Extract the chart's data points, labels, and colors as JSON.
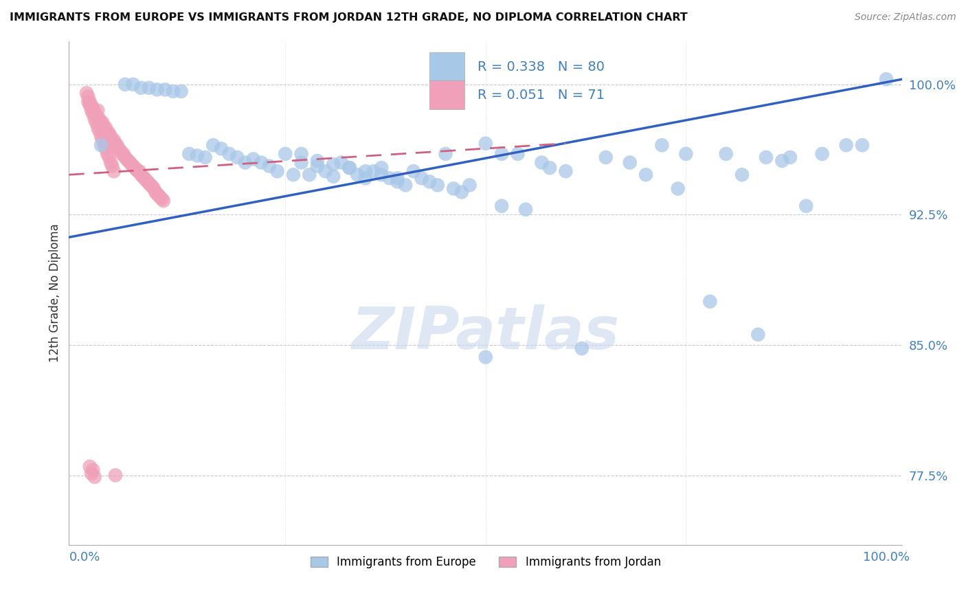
{
  "title": "IMMIGRANTS FROM EUROPE VS IMMIGRANTS FROM JORDAN 12TH GRADE, NO DIPLOMA CORRELATION CHART",
  "source": "Source: ZipAtlas.com",
  "ylabel": "12th Grade, No Diploma",
  "xlim": [
    -0.02,
    1.02
  ],
  "ylim": [
    0.735,
    1.025
  ],
  "ytick_vals": [
    0.775,
    0.85,
    0.925,
    1.0
  ],
  "ytick_labels": [
    "77.5%",
    "85.0%",
    "92.5%",
    "100.0%"
  ],
  "xtick_vals": [
    0.0,
    0.25,
    0.5,
    0.75,
    1.0
  ],
  "xtick_labels": [
    "0.0%",
    "",
    "",
    "",
    "100.0%"
  ],
  "blue_R": 0.338,
  "blue_N": 80,
  "pink_R": 0.051,
  "pink_N": 71,
  "blue_color": "#a8c8e8",
  "pink_color": "#f0a0b8",
  "blue_line_color": "#3060c0",
  "pink_line_color": "#d06080",
  "legend_label_blue": "Immigrants from Europe",
  "legend_label_pink": "Immigrants from Jordan",
  "title_color": "#1a1a1a",
  "source_color": "#888888",
  "watermark": "ZIPatlas",
  "tick_color": "#4080c0",
  "blue_line_x0": -0.02,
  "blue_line_x1": 1.02,
  "blue_line_y0": 0.912,
  "blue_line_y1": 1.003,
  "pink_line_x0": -0.02,
  "pink_line_x1": 0.6,
  "pink_line_y0": 0.948,
  "pink_line_y1": 0.966,
  "blue_scatter_x": [
    0.02,
    0.05,
    0.06,
    0.07,
    0.08,
    0.09,
    0.1,
    0.11,
    0.12,
    0.13,
    0.14,
    0.15,
    0.16,
    0.17,
    0.18,
    0.19,
    0.2,
    0.21,
    0.22,
    0.23,
    0.24,
    0.25,
    0.26,
    0.27,
    0.28,
    0.29,
    0.3,
    0.31,
    0.32,
    0.33,
    0.34,
    0.35,
    0.36,
    0.37,
    0.38,
    0.39,
    0.4,
    0.41,
    0.42,
    0.43,
    0.44,
    0.45,
    0.46,
    0.47,
    0.48,
    0.5,
    0.52,
    0.54,
    0.55,
    0.57,
    0.58,
    0.6,
    0.62,
    0.65,
    0.68,
    0.7,
    0.72,
    0.74,
    0.75,
    0.78,
    0.8,
    0.82,
    0.84,
    0.85,
    0.87,
    0.88,
    0.9,
    0.92,
    0.95,
    0.97,
    1.0,
    0.27,
    0.29,
    0.31,
    0.33,
    0.35,
    0.37,
    0.39,
    0.5,
    0.52
  ],
  "blue_scatter_y": [
    0.965,
    1.0,
    1.0,
    0.998,
    0.998,
    0.997,
    0.997,
    0.996,
    0.996,
    0.96,
    0.959,
    0.958,
    0.965,
    0.963,
    0.96,
    0.958,
    0.955,
    0.957,
    0.955,
    0.953,
    0.95,
    0.96,
    0.948,
    0.955,
    0.948,
    0.953,
    0.95,
    0.947,
    0.955,
    0.952,
    0.948,
    0.946,
    0.95,
    0.952,
    0.946,
    0.944,
    0.942,
    0.95,
    0.946,
    0.944,
    0.942,
    0.96,
    0.94,
    0.938,
    0.942,
    0.966,
    0.93,
    0.96,
    0.928,
    0.955,
    0.952,
    0.95,
    0.848,
    0.958,
    0.955,
    0.948,
    0.965,
    0.94,
    0.96,
    0.875,
    0.96,
    0.948,
    0.856,
    0.958,
    0.956,
    0.958,
    0.93,
    0.96,
    0.965,
    0.965,
    1.003,
    0.96,
    0.956,
    0.954,
    0.952,
    0.95,
    0.948,
    0.946,
    0.843,
    0.96
  ],
  "pink_scatter_x": [
    0.002,
    0.004,
    0.006,
    0.008,
    0.01,
    0.012,
    0.014,
    0.016,
    0.018,
    0.02,
    0.022,
    0.024,
    0.026,
    0.028,
    0.03,
    0.032,
    0.034,
    0.036,
    0.038,
    0.04,
    0.042,
    0.044,
    0.046,
    0.048,
    0.05,
    0.052,
    0.054,
    0.056,
    0.058,
    0.06,
    0.062,
    0.064,
    0.066,
    0.068,
    0.07,
    0.072,
    0.074,
    0.076,
    0.078,
    0.08,
    0.082,
    0.084,
    0.086,
    0.088,
    0.09,
    0.092,
    0.094,
    0.096,
    0.098,
    0.004,
    0.006,
    0.008,
    0.01,
    0.012,
    0.014,
    0.016,
    0.018,
    0.02,
    0.022,
    0.024,
    0.026,
    0.028,
    0.03,
    0.032,
    0.034,
    0.036,
    0.038,
    0.006,
    0.008,
    0.01,
    0.012
  ],
  "pink_scatter_y": [
    0.995,
    0.993,
    0.99,
    0.988,
    0.986,
    0.984,
    0.982,
    0.985,
    0.98,
    0.978,
    0.978,
    0.975,
    0.975,
    0.972,
    0.972,
    0.97,
    0.968,
    0.968,
    0.966,
    0.965,
    0.963,
    0.962,
    0.96,
    0.96,
    0.958,
    0.957,
    0.956,
    0.955,
    0.954,
    0.953,
    0.952,
    0.951,
    0.95,
    0.95,
    0.948,
    0.947,
    0.946,
    0.945,
    0.944,
    0.943,
    0.942,
    0.941,
    0.94,
    0.938,
    0.937,
    0.936,
    0.935,
    0.934,
    0.933,
    0.99,
    0.988,
    0.985,
    0.983,
    0.98,
    0.978,
    0.975,
    0.973,
    0.97,
    0.968,
    0.965,
    0.963,
    0.96,
    0.958,
    0.955,
    0.953,
    0.95,
    0.775,
    0.78,
    0.776,
    0.778,
    0.774
  ]
}
